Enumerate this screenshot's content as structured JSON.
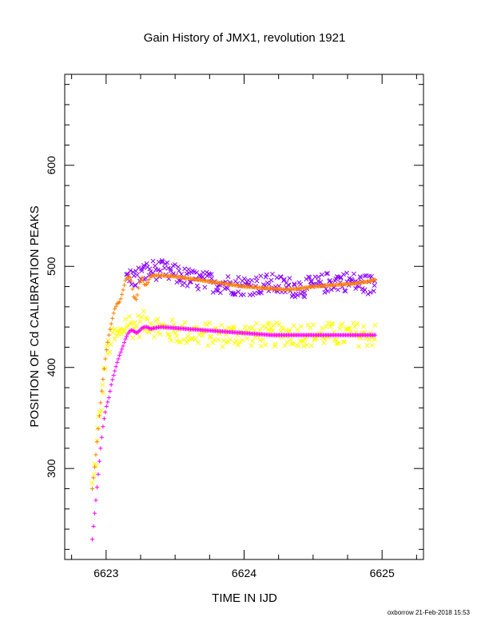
{
  "chart_data": {
    "type": "scatter",
    "title": "Gain History of JMX1, revolution 1921",
    "xlabel": "TIME IN IJD",
    "ylabel": "POSITION OF Cd CALIBRATION PEAKS",
    "xlim": [
      6622.7,
      6625.3
    ],
    "ylim": [
      210,
      690
    ],
    "x_ticks": [
      6623,
      6624,
      6625
    ],
    "x_tick_labels": [
      "6623",
      "6624",
      "6625"
    ],
    "y_ticks": [
      300,
      400,
      500,
      600
    ],
    "y_tick_labels": [
      "300",
      "400",
      "500",
      "600"
    ],
    "grid": false,
    "legend": "none",
    "series": [
      {
        "color": "#ffff00",
        "marker": "x",
        "spread": 12,
        "x": [
          6622.9,
          6622.92,
          6622.94,
          6622.96,
          6622.98,
          6623.0,
          6623.03,
          6623.06,
          6623.1,
          6623.15,
          6623.2,
          6623.25,
          6623.3,
          6623.35,
          6623.4,
          6623.5,
          6623.6,
          6623.7,
          6623.8,
          6623.9,
          6624.0,
          6624.1,
          6624.2,
          6624.3,
          6624.4,
          6624.5,
          6624.6,
          6624.7,
          6624.8,
          6624.9,
          6624.95
        ],
        "y": [
          282,
          305,
          335,
          360,
          385,
          410,
          425,
          430,
          432,
          445,
          440,
          442,
          446,
          442,
          438,
          435,
          434,
          433,
          432,
          432,
          433,
          432,
          432,
          433,
          433,
          432,
          433,
          432,
          433,
          432,
          432
        ]
      },
      {
        "color": "#8800ff",
        "marker": "x",
        "spread": 10,
        "x": [
          6623.15,
          6623.2,
          6623.25,
          6623.3,
          6623.35,
          6623.4,
          6623.5,
          6623.6,
          6623.7,
          6623.8,
          6623.9,
          6624.0,
          6624.1,
          6624.2,
          6624.3,
          6624.4,
          6624.5,
          6624.6,
          6624.7,
          6624.8,
          6624.9,
          6624.95
        ],
        "y": [
          490,
          488,
          492,
          495,
          497,
          496,
          492,
          488,
          485,
          484,
          482,
          481,
          482,
          483,
          480,
          479,
          480,
          484,
          486,
          484,
          482,
          482
        ]
      },
      {
        "color": "#ff8000",
        "marker": "+",
        "x": [
          6622.9,
          6622.92,
          6622.94,
          6622.96,
          6622.98,
          6623.0,
          6623.02,
          6623.04,
          6623.06,
          6623.08,
          6623.1,
          6623.12,
          6623.14,
          6623.16,
          6623.18,
          6623.2,
          6623.22,
          6623.24,
          6623.26,
          6623.28,
          6623.3,
          6623.32,
          6623.35,
          6623.4,
          6623.5,
          6623.6,
          6623.7,
          6623.8,
          6623.9,
          6624.0,
          6624.1,
          6624.2,
          6624.3,
          6624.4,
          6624.5,
          6624.6,
          6624.7,
          6624.8,
          6624.9,
          6624.95
        ],
        "y": [
          280,
          305,
          335,
          365,
          392,
          415,
          432,
          445,
          457,
          463,
          465,
          475,
          486,
          490,
          488,
          470,
          467,
          483,
          489,
          481,
          483,
          490,
          491,
          491,
          490,
          488,
          486,
          484,
          482,
          480,
          479,
          478,
          477,
          478,
          480,
          481,
          482,
          483,
          485,
          487
        ]
      },
      {
        "color": "#ff00ff",
        "marker": "+",
        "x": [
          6622.9,
          6622.92,
          6622.94,
          6622.96,
          6622.98,
          6623.0,
          6623.02,
          6623.04,
          6623.06,
          6623.08,
          6623.1,
          6623.12,
          6623.14,
          6623.16,
          6623.18,
          6623.2,
          6623.22,
          6623.24,
          6623.26,
          6623.28,
          6623.3,
          6623.32,
          6623.35,
          6623.4,
          6623.5,
          6623.6,
          6623.7,
          6623.8,
          6623.9,
          6624.0,
          6624.1,
          6624.2,
          6624.3,
          6624.4,
          6624.5,
          6624.6,
          6624.7,
          6624.8,
          6624.9,
          6624.95
        ],
        "y": [
          230,
          260,
          290,
          320,
          345,
          360,
          370,
          385,
          395,
          405,
          413,
          420,
          428,
          434,
          437,
          436,
          434,
          436,
          439,
          440,
          440,
          438,
          439,
          440,
          439,
          438,
          437,
          436,
          435,
          434,
          433,
          432,
          432,
          432,
          432,
          432,
          432,
          432,
          432,
          432
        ]
      }
    ],
    "annotations": [
      "oxborrow 21-Feb-2018 15:53"
    ]
  }
}
